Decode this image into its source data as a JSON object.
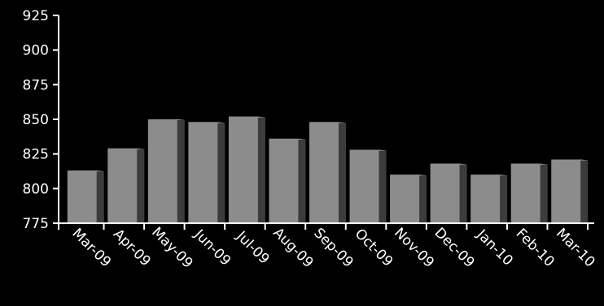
{
  "chart_data": {
    "type": "bar",
    "title": "",
    "xlabel": "",
    "ylabel": "",
    "categories": [
      "Mar-09",
      "Apr-09",
      "May-09",
      "Jun-09",
      "Jul-09",
      "Aug-09",
      "Sep-09",
      "Oct-09",
      "Nov-09",
      "Dec-09",
      "Jan-10",
      "Feb-10",
      "Mar-10"
    ],
    "values": [
      813,
      829,
      850,
      848,
      852,
      836,
      848,
      828,
      810,
      818,
      810,
      818,
      821
    ],
    "ylim": [
      775,
      925
    ],
    "yticks": [
      775,
      800,
      825,
      850,
      875,
      900,
      925
    ],
    "grid": false,
    "legend": "none",
    "style": "3d-bar",
    "colors": {
      "background": "#000000",
      "bar_front": "#8c8c8c",
      "bar_side": "#3c3c3c",
      "bar_top": "#b0b0b0",
      "axis": "#ffffff",
      "text": "#ffffff"
    }
  }
}
